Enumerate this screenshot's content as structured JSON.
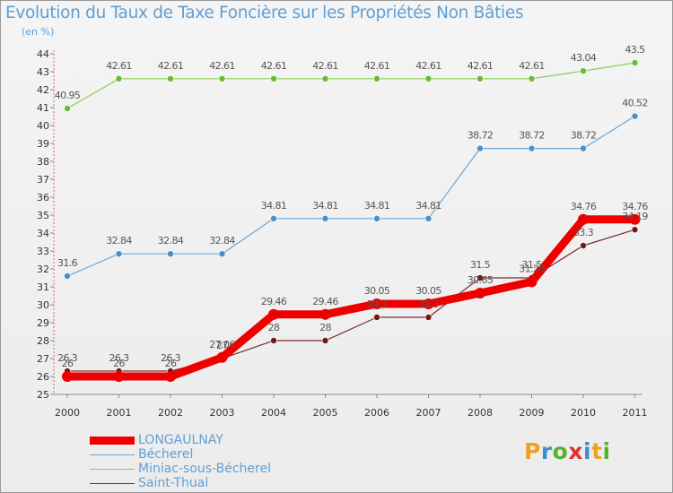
{
  "header": {
    "title": "Evolution du Taux de Taxe Foncière sur les Propriétés Non Bâties",
    "units": "(en %)"
  },
  "logo": {
    "text": "Proxiti",
    "letters": [
      "P",
      "r",
      "o",
      "x",
      "i",
      "t",
      "i"
    ]
  },
  "colors": {
    "logo": [
      "#f0a020",
      "#3a8fd0",
      "#58b030",
      "#e03030",
      "#3a8fd0",
      "#f0a020",
      "#58b030"
    ]
  },
  "chart_data": {
    "type": "line",
    "title": "Evolution du Taux de Taxe Foncière sur les Propriétés Non Bâties",
    "ylabel": "(en %)",
    "xlabel": "",
    "ylim": [
      25,
      44
    ],
    "yticks": [
      25,
      26,
      27,
      28,
      29,
      30,
      31,
      32,
      33,
      34,
      35,
      36,
      37,
      38,
      39,
      40,
      41,
      42,
      43,
      44
    ],
    "x": [
      "2000",
      "2001",
      "2002",
      "2003",
      "2004",
      "2005",
      "2006",
      "2007",
      "2008",
      "2009",
      "2010",
      "2011"
    ],
    "series": [
      {
        "name": "Saint-Thual",
        "color": "#7a2a2a",
        "marker": "#6e1a1a",
        "values": [
          26.3,
          26.3,
          26.3,
          27.0,
          28.0,
          28.0,
          29.3,
          29.3,
          31.5,
          31.5,
          33.3,
          34.19
        ],
        "labels": [
          "26.3",
          "26.3",
          "26.3",
          "27",
          "28",
          "28",
          "29.3",
          "29.3",
          "31.5",
          "31.5",
          "33.3",
          "34.19"
        ]
      },
      {
        "name": "Miniac-sous-Bécherel",
        "color": "#88cc55",
        "marker": "#66bb33",
        "values": [
          40.95,
          42.61,
          42.61,
          42.61,
          42.61,
          42.61,
          42.61,
          42.61,
          42.61,
          42.61,
          43.04,
          43.5
        ],
        "labels": [
          "40.95",
          "42.61",
          "42.61",
          "42.61",
          "42.61",
          "42.61",
          "42.61",
          "42.61",
          "42.61",
          "42.61",
          "43.04",
          "43.5"
        ]
      },
      {
        "name": "Bécherel",
        "color": "#6aa6d6",
        "marker": "#4a8fc8",
        "values": [
          31.6,
          32.84,
          32.84,
          32.84,
          34.81,
          34.81,
          34.81,
          34.81,
          38.72,
          38.72,
          38.72,
          40.52
        ],
        "labels": [
          "31.6",
          "32.84",
          "32.84",
          "32.84",
          "34.81",
          "34.81",
          "34.81",
          "34.81",
          "38.72",
          "38.72",
          "38.72",
          "40.52"
        ]
      },
      {
        "name": "LONGAULNAY",
        "color": "#ee0000",
        "marker": "#ee0000",
        "values": [
          26.0,
          26.0,
          26.0,
          27.06,
          29.46,
          29.46,
          30.05,
          30.05,
          30.65,
          31.28,
          34.76,
          34.76
        ],
        "labels": [
          "26",
          "26",
          "26",
          "27.06",
          "29.46",
          "29.46",
          "30.05",
          "30.05",
          "30.65",
          "31.28",
          "34.76",
          "34.76"
        ]
      }
    ],
    "legend": [
      "LONGAULNAY",
      "Bécherel",
      "Miniac-sous-Bécherel",
      "Saint-Thual"
    ],
    "legend_position": "bottom-left"
  }
}
